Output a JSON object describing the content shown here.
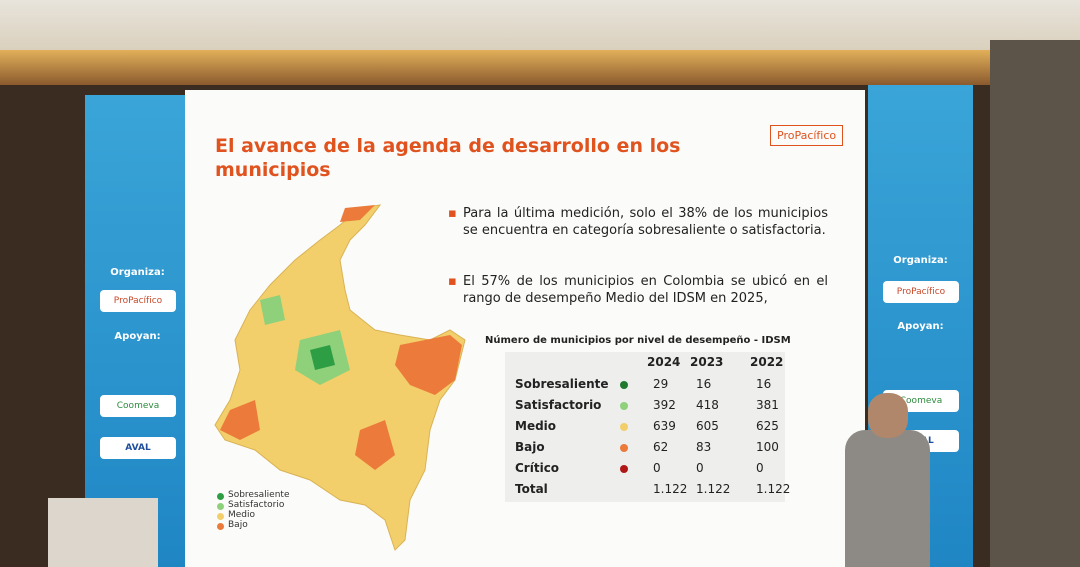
{
  "slide": {
    "title_line1": "El avance de la agenda de desarrollo en los",
    "title_line2": "municipios",
    "logo": "ProPacífico",
    "bullets": [
      "Para la última medición, solo el 38% de los municipios se encuentra en categoría sobresaliente o satisfactoria.",
      "El 57% de los municipios en Colombia se ubicó en el rango de desempeño Medio del IDSM en 2025,"
    ],
    "map_legend": [
      {
        "label": "Sobresaliente",
        "color": "#2e9e44"
      },
      {
        "label": "Satisfactorio",
        "color": "#8fd07a"
      },
      {
        "label": "Medio",
        "color": "#f2cf6b"
      },
      {
        "label": "Bajo",
        "color": "#ec7a3a"
      }
    ],
    "table": {
      "title": "Número de municipios por nivel de desempeño - IDSM",
      "headers": [
        "2024",
        "2023",
        "2022"
      ],
      "rows": [
        {
          "label": "Sobresaliente",
          "color": "#1f7a2e",
          "values": [
            29,
            16,
            16
          ]
        },
        {
          "label": "Satisfactorio",
          "color": "#8fd07a",
          "values": [
            392,
            418,
            381
          ]
        },
        {
          "label": "Medio",
          "color": "#f2cf6b",
          "values": [
            639,
            605,
            625
          ]
        },
        {
          "label": "Bajo",
          "color": "#ec7a3a",
          "values": [
            62,
            83,
            100
          ]
        },
        {
          "label": "Crítico",
          "color": "#b01818",
          "values": [
            0,
            0,
            0
          ]
        },
        {
          "label": "Total",
          "values": [
            "1.122",
            "1.122",
            "1.122"
          ]
        }
      ]
    }
  },
  "banners": {
    "organiza": "Organiza:",
    "organizer": "ProPacífico",
    "apoyan": "Apoyan:",
    "sponsors": [
      "Coomeva",
      "AVAL"
    ]
  }
}
